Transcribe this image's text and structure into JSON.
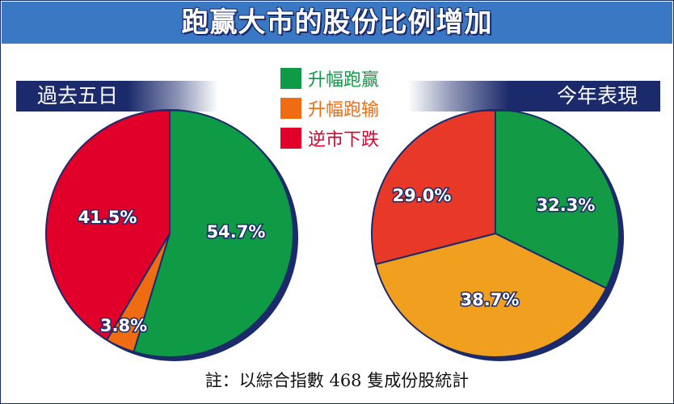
{
  "title": "跑赢大市的股份比例增加",
  "legend": [
    {
      "label": "升幅跑赢",
      "color": "#0f9a45"
    },
    {
      "label": "升幅跑输",
      "color": "#ef6c12"
    },
    {
      "label": "逆市下跌",
      "color": "#e0002a"
    }
  ],
  "footnote": "註：以綜合指數 468 隻成份股統計",
  "chart_data": [
    {
      "type": "pie",
      "title": "過去五日",
      "slices": [
        {
          "label": "升幅跑赢",
          "value": 54.7,
          "display": "54.7%",
          "color": "#0f9a45"
        },
        {
          "label": "升幅跑输",
          "value": 3.8,
          "display": "3.8%",
          "color": "#ef6c12"
        },
        {
          "label": "逆市下跌",
          "value": 41.5,
          "display": "41.5%",
          "color": "#e0002a"
        }
      ]
    },
    {
      "type": "pie",
      "title": "今年表現",
      "slices": [
        {
          "label": "升幅跑赢",
          "value": 32.3,
          "display": "32.3%",
          "color": "#139a45"
        },
        {
          "label": "升幅跑输",
          "value": 38.7,
          "display": "38.7%",
          "color": "#f0a01e"
        },
        {
          "label": "逆市下跌",
          "value": 29.0,
          "display": "29.0%",
          "color": "#e83828"
        }
      ]
    }
  ]
}
